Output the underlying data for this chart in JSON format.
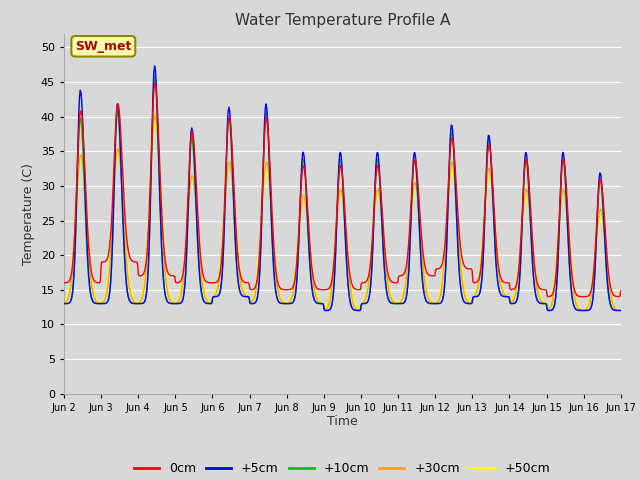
{
  "title": "Water Temperature Profile A",
  "xlabel": "Time",
  "ylabel": "Temperature (C)",
  "ylim": [
    0,
    52
  ],
  "yticks": [
    0,
    5,
    10,
    15,
    20,
    25,
    30,
    35,
    40,
    45,
    50
  ],
  "bg_color": "#d8d8d8",
  "plot_bg_color": "#d8d8d8",
  "grid_color": "white",
  "series_colors": [
    "red",
    "blue",
    "#00cc00",
    "orange",
    "yellow"
  ],
  "series_labels": [
    "0cm",
    "+5cm",
    "+10cm",
    "+30cm",
    "+50cm"
  ],
  "x_tick_labels": [
    "Jun 2",
    "Jun 3",
    "Jun 4",
    "Jun 5",
    "Jun 6",
    "Jun 7",
    "Jun 8",
    "Jun 9",
    "Jun 10",
    "Jun 11",
    "Jun 12",
    "Jun 13",
    "Jun 14",
    "Jun 15",
    "Jun 16",
    "Jun 17"
  ],
  "annotation_text": "SW_met",
  "annotation_bg": "#ffffaa",
  "annotation_fg": "#aa0000",
  "annotation_edge": "#888800"
}
